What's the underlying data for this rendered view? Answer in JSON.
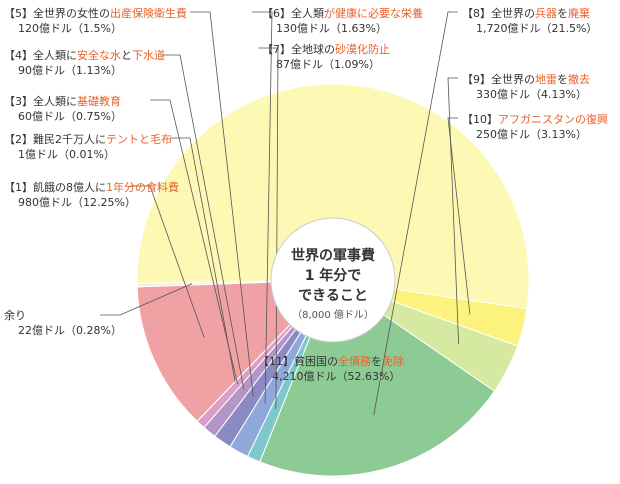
{
  "chart_data": {
    "type": "pie",
    "title": [
      "世界の軍事費",
      "1 年分で",
      "できること"
    ],
    "subtitle": "（8,000 億ドル）",
    "slices": [
      {
        "id": "s11",
        "pre": "【11】貧困国の",
        "hl": "全債務",
        "suf": "を",
        "hl2": "免除",
        "amount": "4,210億ドル（52.63%）",
        "value": 52.63,
        "color": "#fdf8b4"
      },
      {
        "id": "s10",
        "pre": "【10】",
        "hl": "アフガニスタンの復興",
        "suf": "",
        "hl2": "",
        "amount": "250億ドル（3.13%）",
        "value": 3.13,
        "color": "#fcf37e"
      },
      {
        "id": "s9",
        "pre": "【9】全世界の",
        "hl": "地雷",
        "suf": "を",
        "hl2": "撤去",
        "amount": "330億ドル（4.13%）",
        "value": 4.13,
        "color": "#d6e9a0"
      },
      {
        "id": "s8",
        "pre": "【8】全世界の",
        "hl": "兵器",
        "suf": "を",
        "hl2": "廃棄",
        "amount": "1,720億ドル（21.5%）",
        "value": 21.5,
        "color": "#8dcb94"
      },
      {
        "id": "s7",
        "pre": "【7】全地球の",
        "hl": "砂漠化防止",
        "suf": "",
        "hl2": "",
        "amount": "87億ドル（1.09%）",
        "value": 1.09,
        "color": "#7ec7cc"
      },
      {
        "id": "s6",
        "pre": "【6】全人類",
        "hl": "が健康に必要な栄養",
        "suf": "",
        "hl2": "",
        "amount": "130億ドル（1.63%）",
        "value": 1.63,
        "color": "#8fa8da"
      },
      {
        "id": "s5",
        "pre": "【5】全世界の女性の",
        "hl": "出産保険衛生費",
        "suf": "",
        "hl2": "",
        "amount": "120億ドル（1.5%）",
        "value": 1.5,
        "color": "#8c8ac2"
      },
      {
        "id": "s4",
        "pre": "【4】全人類に",
        "hl": "安全な水",
        "suf": "と",
        "hl2": "下水道",
        "amount": "90億ドル（1.13%）",
        "value": 1.13,
        "color": "#b396c8"
      },
      {
        "id": "s3",
        "pre": "【3】全人類に",
        "hl": "基礎教育",
        "suf": "",
        "hl2": "",
        "amount": "60億ドル（0.75%）",
        "value": 0.75,
        "color": "#dc9ec8"
      },
      {
        "id": "s2",
        "pre": "【2】難民2千万人に",
        "hl": "テントと毛布",
        "suf": "",
        "hl2": "",
        "amount": "1億ドル（0.01%）",
        "value": 0.01,
        "color": "#f5a9b9"
      },
      {
        "id": "s1",
        "pre": "【1】飢餓の8億人に",
        "hl": "1年分の食料費",
        "suf": "",
        "hl2": "",
        "amount": "980億ドル（12.25%）",
        "value": 12.25,
        "color": "#f0a1a3"
      },
      {
        "id": "rest",
        "pre": "余り",
        "hl": "",
        "suf": "",
        "hl2": "",
        "amount": "22億ドル（0.28%）",
        "value": 0.28,
        "color": "#f8f0d8"
      }
    ]
  }
}
